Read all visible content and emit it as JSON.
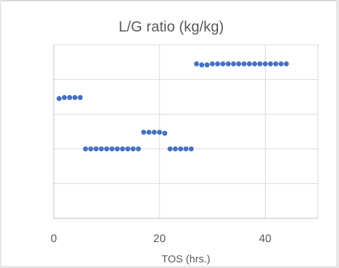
{
  "chart_data": {
    "type": "scatter",
    "title": "L/G ratio (kg/kg)",
    "xlabel": "TOS (hrs.)",
    "ylabel": "",
    "xlim": [
      0,
      50
    ],
    "ylim": [
      0,
      5
    ],
    "x_ticks": [
      0,
      20,
      40
    ],
    "y_tick_labels_shown": false,
    "grid": true,
    "legend": "none",
    "marker_color": "#4472C4",
    "series": [
      {
        "x": [
          1,
          2,
          3,
          4,
          5,
          6,
          7,
          8,
          9,
          10,
          11,
          12,
          13,
          14,
          15,
          16,
          17,
          18,
          19,
          20,
          21,
          22,
          23,
          24,
          25,
          26,
          27,
          28,
          29,
          30,
          31,
          32,
          33,
          34,
          35,
          36,
          37,
          38,
          39,
          40,
          41,
          42,
          43,
          44
        ],
        "y": [
          3.45,
          3.48,
          3.48,
          3.48,
          3.48,
          2.0,
          2.0,
          2.0,
          2.0,
          2.0,
          2.0,
          2.0,
          2.0,
          2.0,
          2.0,
          2.0,
          2.48,
          2.48,
          2.48,
          2.48,
          2.45,
          2.0,
          2.0,
          2.0,
          2.0,
          2.0,
          4.45,
          4.42,
          4.42,
          4.45,
          4.45,
          4.45,
          4.45,
          4.45,
          4.45,
          4.45,
          4.45,
          4.45,
          4.45,
          4.45,
          4.45,
          4.45,
          4.45,
          4.45
        ]
      }
    ]
  }
}
